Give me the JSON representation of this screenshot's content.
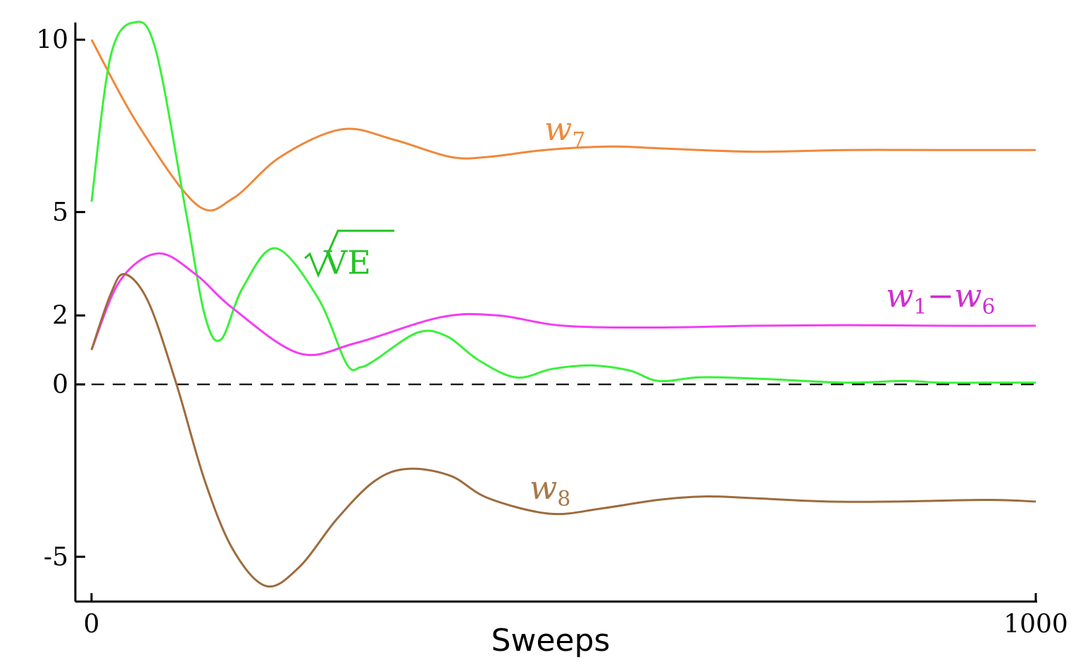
{
  "chart_data": {
    "type": "line",
    "xlabel": "Sweeps",
    "ylabel": "",
    "xlim": [
      0,
      1000
    ],
    "ylim": [
      -6.3,
      10.6
    ],
    "x_ticks": [
      {
        "value": 0,
        "label": "0"
      },
      {
        "value": 1000,
        "label": "1000"
      }
    ],
    "y_ticks": [
      {
        "value": 10,
        "label": "10"
      },
      {
        "value": 5,
        "label": "5"
      },
      {
        "value": 2,
        "label": "2"
      },
      {
        "value": 0,
        "label": "0"
      },
      {
        "value": -5,
        "label": "-5"
      }
    ],
    "reference_line": {
      "y": 0,
      "style": "dashed",
      "color": "#000000"
    },
    "grid": false,
    "series": [
      {
        "name": "w7",
        "label_main": "w",
        "label_sub": "7",
        "color": "#f0883a",
        "x": [
          0,
          50,
          112,
          150,
          200,
          265,
          320,
          380,
          420,
          480,
          550,
          600,
          700,
          800,
          900,
          1000
        ],
        "y": [
          10.0,
          7.5,
          5.2,
          5.4,
          6.6,
          7.4,
          7.1,
          6.6,
          6.6,
          6.8,
          6.9,
          6.85,
          6.75,
          6.8,
          6.8,
          6.8
        ]
      },
      {
        "name": "√VE",
        "label_main": "VE",
        "label_sub": "",
        "color": "#38f238",
        "label_color": "#22c322",
        "x": [
          0,
          20,
          45,
          68,
          100,
          120,
          137,
          160,
          195,
          240,
          270,
          285,
          300,
          345,
          376,
          410,
          450,
          488,
          530,
          570,
          600,
          640,
          670,
          720,
          800,
          860,
          900,
          950,
          1000
        ],
        "y": [
          5.3,
          9.5,
          10.5,
          9.7,
          5.0,
          2.0,
          1.3,
          2.8,
          3.95,
          2.5,
          0.6,
          0.5,
          0.7,
          1.5,
          1.4,
          0.7,
          0.2,
          0.45,
          0.55,
          0.4,
          0.1,
          0.2,
          0.2,
          0.15,
          0.05,
          0.1,
          0.05,
          0.05,
          0.05
        ]
      },
      {
        "name": "w1–w6",
        "label_main": "w",
        "label_sub": "1",
        "label_main2": "w",
        "label_sub2": "6",
        "label_sep": "−",
        "color": "#f43cf4",
        "label_color": "#cf2ecf",
        "x": [
          0,
          30,
          70,
          110,
          150,
          220,
          280,
          370,
          430,
          500,
          600,
          700,
          800,
          900,
          1000
        ],
        "y": [
          1.0,
          3.0,
          3.8,
          3.2,
          2.2,
          0.9,
          1.2,
          1.95,
          2.0,
          1.7,
          1.65,
          1.7,
          1.72,
          1.7,
          1.7
        ]
      },
      {
        "name": "w8",
        "label_main": "w",
        "label_sub": "8",
        "color": "#9e6b3c",
        "label_color": "#a8784a",
        "x": [
          0,
          20,
          35,
          60,
          90,
          120,
          150,
          185,
          220,
          260,
          300,
          335,
          380,
          420,
          485,
          540,
          600,
          650,
          700,
          780,
          850,
          950,
          1000
        ],
        "y": [
          1.0,
          2.6,
          3.2,
          2.4,
          0.0,
          -2.8,
          -4.8,
          -5.85,
          -5.3,
          -3.9,
          -2.8,
          -2.45,
          -2.65,
          -3.3,
          -3.75,
          -3.6,
          -3.35,
          -3.25,
          -3.3,
          -3.4,
          -3.4,
          -3.35,
          -3.4
        ]
      }
    ]
  }
}
